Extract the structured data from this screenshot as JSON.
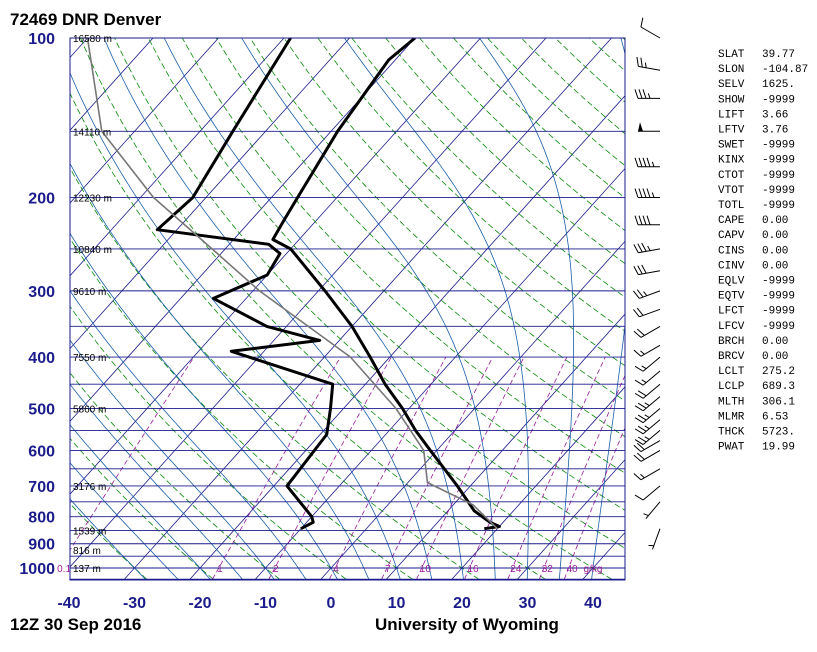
{
  "chart_data": {
    "type": "line",
    "title": "72469 DNR Denver",
    "valid_time": "12Z 30 Sep 2016",
    "source": "University of Wyoming",
    "pressure_ticks": [
      100,
      200,
      300,
      400,
      500,
      600,
      700,
      800,
      900,
      1000
    ],
    "temperature_ticks": [
      -40,
      -30,
      -20,
      -10,
      0,
      10,
      20,
      30,
      40
    ],
    "xlim": [
      -40,
      45
    ],
    "ylim": [
      1050,
      100
    ],
    "height_labels": [
      {
        "p": 100,
        "text": "16580 m"
      },
      {
        "p": 150,
        "text": "14110 m"
      },
      {
        "p": 200,
        "text": "12230 m"
      },
      {
        "p": 250,
        "text": "10840 m"
      },
      {
        "p": 300,
        "text": "9610 m"
      },
      {
        "p": 400,
        "text": "7550 m"
      },
      {
        "p": 500,
        "text": "5860 m"
      },
      {
        "p": 700,
        "text": "3176 m"
      },
      {
        "p": 850,
        "text": "1539 m"
      },
      {
        "p": 925,
        "text": "816 m"
      },
      {
        "p": 1000,
        "text": "137 m"
      }
    ],
    "mixing_ratio_labels": [
      "0.1",
      "1",
      "2",
      "4",
      "7",
      "10",
      "16",
      "24",
      "32",
      "40",
      "g/kg"
    ],
    "mixing_ratios": [
      0.1,
      1,
      2,
      4,
      7,
      10,
      16,
      24,
      32,
      40
    ],
    "series": [
      {
        "name": "Temperature",
        "color": "#000000",
        "points": [
          {
            "p": 100,
            "t": -60
          },
          {
            "p": 110,
            "t": -61
          },
          {
            "p": 150,
            "t": -59
          },
          {
            "p": 200,
            "t": -56
          },
          {
            "p": 220,
            "t": -55
          },
          {
            "p": 240,
            "t": -54
          },
          {
            "p": 250,
            "t": -50
          },
          {
            "p": 300,
            "t": -39
          },
          {
            "p": 350,
            "t": -30
          },
          {
            "p": 400,
            "t": -23
          },
          {
            "p": 450,
            "t": -17
          },
          {
            "p": 500,
            "t": -11
          },
          {
            "p": 550,
            "t": -6
          },
          {
            "p": 600,
            "t": -1
          },
          {
            "p": 700,
            "t": 8
          },
          {
            "p": 780,
            "t": 14
          },
          {
            "p": 820,
            "t": 18
          },
          {
            "p": 835,
            "t": 20
          },
          {
            "p": 843,
            "t": 18
          }
        ]
      },
      {
        "name": "Dewpoint",
        "color": "#000000",
        "points": [
          {
            "p": 100,
            "t": -79
          },
          {
            "p": 150,
            "t": -75
          },
          {
            "p": 200,
            "t": -72
          },
          {
            "p": 230,
            "t": -73
          },
          {
            "p": 245,
            "t": -54
          },
          {
            "p": 255,
            "t": -51
          },
          {
            "p": 280,
            "t": -50
          },
          {
            "p": 310,
            "t": -55
          },
          {
            "p": 350,
            "t": -43
          },
          {
            "p": 372,
            "t": -33
          },
          {
            "p": 390,
            "t": -45
          },
          {
            "p": 450,
            "t": -25
          },
          {
            "p": 500,
            "t": -22
          },
          {
            "p": 560,
            "t": -19
          },
          {
            "p": 700,
            "t": -18
          },
          {
            "p": 800,
            "t": -10
          },
          {
            "p": 820,
            "t": -9
          },
          {
            "p": 843,
            "t": -10
          }
        ]
      },
      {
        "name": "Parcel",
        "color": "#777777",
        "points": [
          {
            "p": 100,
            "t": -110
          },
          {
            "p": 150,
            "t": -95
          },
          {
            "p": 200,
            "t": -78
          },
          {
            "p": 250,
            "t": -62
          },
          {
            "p": 300,
            "t": -49
          },
          {
            "p": 400,
            "t": -26
          },
          {
            "p": 500,
            "t": -12
          },
          {
            "p": 600,
            "t": -2
          },
          {
            "p": 690,
            "t": 3
          },
          {
            "p": 760,
            "t": 13
          },
          {
            "p": 843,
            "t": 20
          }
        ]
      }
    ],
    "wind_barbs": [
      {
        "p": 100,
        "dir": 300,
        "spd": 10
      },
      {
        "p": 115,
        "dir": 280,
        "spd": 25
      },
      {
        "p": 130,
        "dir": 270,
        "spd": 35
      },
      {
        "p": 150,
        "dir": 270,
        "spd": 50
      },
      {
        "p": 175,
        "dir": 270,
        "spd": 45
      },
      {
        "p": 200,
        "dir": 270,
        "spd": 45
      },
      {
        "p": 225,
        "dir": 270,
        "spd": 40
      },
      {
        "p": 250,
        "dir": 260,
        "spd": 35
      },
      {
        "p": 275,
        "dir": 260,
        "spd": 30
      },
      {
        "p": 300,
        "dir": 250,
        "spd": 25
      },
      {
        "p": 325,
        "dir": 250,
        "spd": 20
      },
      {
        "p": 350,
        "dir": 240,
        "spd": 20
      },
      {
        "p": 380,
        "dir": 240,
        "spd": 15
      },
      {
        "p": 400,
        "dir": 230,
        "spd": 15
      },
      {
        "p": 425,
        "dir": 230,
        "spd": 15
      },
      {
        "p": 450,
        "dir": 230,
        "spd": 20
      },
      {
        "p": 475,
        "dir": 230,
        "spd": 25
      },
      {
        "p": 500,
        "dir": 230,
        "spd": 25
      },
      {
        "p": 525,
        "dir": 230,
        "spd": 25
      },
      {
        "p": 550,
        "dir": 230,
        "spd": 25
      },
      {
        "p": 575,
        "dir": 240,
        "spd": 20
      },
      {
        "p": 600,
        "dir": 240,
        "spd": 20
      },
      {
        "p": 650,
        "dir": 240,
        "spd": 15
      },
      {
        "p": 700,
        "dir": 230,
        "spd": 10
      },
      {
        "p": 750,
        "dir": 220,
        "spd": 5
      },
      {
        "p": 843,
        "dir": 200,
        "spd": 5
      }
    ],
    "indices": [
      {
        "name": "SLAT",
        "value": "39.77"
      },
      {
        "name": "SLON",
        "value": "-104.87"
      },
      {
        "name": "SELV",
        "value": "1625."
      },
      {
        "name": "SHOW",
        "value": "-9999"
      },
      {
        "name": "LIFT",
        "value": "3.66"
      },
      {
        "name": "LFTV",
        "value": "3.76"
      },
      {
        "name": "SWET",
        "value": "-9999"
      },
      {
        "name": "KINX",
        "value": "-9999"
      },
      {
        "name": "CTOT",
        "value": "-9999"
      },
      {
        "name": "VTOT",
        "value": "-9999"
      },
      {
        "name": "TOTL",
        "value": "-9999"
      },
      {
        "name": "CAPE",
        "value": "0.00"
      },
      {
        "name": "CAPV",
        "value": "0.00"
      },
      {
        "name": "CINS",
        "value": "0.00"
      },
      {
        "name": "CINV",
        "value": "0.00"
      },
      {
        "name": "EQLV",
        "value": "-9999"
      },
      {
        "name": "EQTV",
        "value": "-9999"
      },
      {
        "name": "LFCT",
        "value": "-9999"
      },
      {
        "name": "LFCV",
        "value": "-9999"
      },
      {
        "name": "BRCH",
        "value": "0.00"
      },
      {
        "name": "BRCV",
        "value": "0.00"
      },
      {
        "name": "LCLT",
        "value": "275.2"
      },
      {
        "name": "LCLP",
        "value": "689.3"
      },
      {
        "name": "MLTH",
        "value": "306.1"
      },
      {
        "name": "MLMR",
        "value": "6.53"
      },
      {
        "name": "THCK",
        "value": "5723."
      },
      {
        "name": "PWAT",
        "value": "19.99"
      }
    ],
    "colors": {
      "isobar": "#1b1b8c",
      "isotherm": "#1b1b8c",
      "dry_adiabat": "#0a8a0a",
      "moist_adiabat": "#1b5fa8",
      "mixing_ratio": "#9a1a9a",
      "profile": "#000000",
      "parcel": "#777777",
      "tick_text": "#1b1b8c"
    }
  }
}
